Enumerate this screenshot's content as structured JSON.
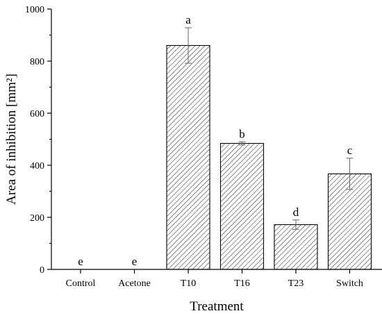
{
  "chart_data": {
    "type": "bar",
    "title": "",
    "xlabel": "Treatment",
    "ylabel": "Area of inhibition [mm²]",
    "ylim": [
      0,
      1000
    ],
    "yticks": [
      0,
      200,
      400,
      600,
      800,
      1000
    ],
    "categories": [
      "Control",
      "Acetone",
      "T10",
      "T16",
      "T23",
      "Switch"
    ],
    "values": [
      0,
      0,
      860,
      484,
      172,
      367
    ],
    "errors": [
      0,
      0,
      68,
      6,
      18,
      60
    ],
    "significance_letters": [
      "e",
      "e",
      "a",
      "b",
      "d",
      "c"
    ],
    "bar_fill": "hatched",
    "grid": false,
    "legend": "none",
    "colors": {
      "bar_stroke": "#000000",
      "hatch": "#000000",
      "error_bar": "#666666"
    }
  }
}
